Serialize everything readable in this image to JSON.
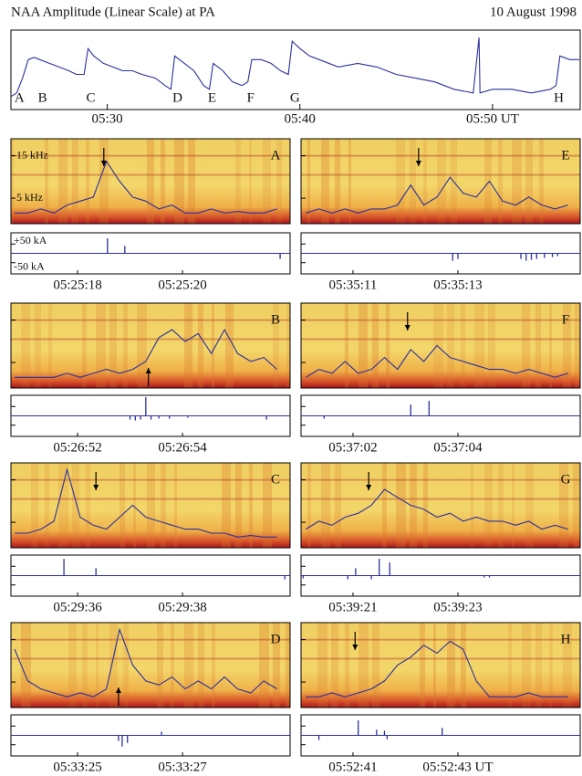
{
  "chart_data": [
    {
      "type": "line",
      "title": "NAA Amplitude (Linear Scale) at PA",
      "subtitle": "10 August 1998",
      "color": "#2b2f9e",
      "xlim": [
        25,
        54.55
      ],
      "ylim": [
        0,
        10
      ],
      "xticks": [
        {
          "value": 30,
          "label": "05:30"
        },
        {
          "value": 40,
          "label": "05:40"
        },
        {
          "value": 50,
          "label": "05:50 UT"
        }
      ],
      "x": [
        25,
        25.3,
        25.6,
        25.9,
        26.2,
        26.5,
        27,
        27.5,
        28,
        28.4,
        28.8,
        29.0,
        29.3,
        29.8,
        30.3,
        30.8,
        31.3,
        31.8,
        32.5,
        33.0,
        33.3,
        33.5,
        34,
        34.5,
        35,
        35.3,
        35.5,
        36,
        36.5,
        37,
        37.3,
        37.5,
        38,
        38.5,
        39,
        39.4,
        39.6,
        40,
        40.5,
        41,
        42,
        43,
        44,
        45,
        46,
        47,
        48,
        49,
        49.3,
        49.35,
        50,
        51,
        52,
        53,
        53.3,
        53.5,
        54,
        54.5
      ],
      "values": [
        1.5,
        2,
        4,
        6.5,
        6.8,
        6.5,
        6,
        5.5,
        5,
        4.5,
        4.5,
        8,
        7,
        6,
        5.5,
        5,
        5,
        4.5,
        4,
        3,
        2.5,
        7,
        6,
        5,
        3,
        2.5,
        6,
        5,
        3.5,
        3,
        3.5,
        6.5,
        6.5,
        6,
        5,
        4.5,
        9,
        8,
        7,
        6.5,
        5.5,
        6,
        5.5,
        4.5,
        4,
        3.5,
        2.5,
        2,
        9.5,
        2,
        2.5,
        2.5,
        2,
        2.5,
        3,
        7,
        6.5,
        6.5
      ],
      "annotations": [
        {
          "text": "A",
          "x": 25.3
        },
        {
          "text": "B",
          "x": 26.5
        },
        {
          "text": "C",
          "x": 29.0
        },
        {
          "text": "D",
          "x": 33.5
        },
        {
          "text": "E",
          "x": 35.3
        },
        {
          "text": "F",
          "x": 37.3
        },
        {
          "text": "G",
          "x": 39.6
        },
        {
          "text": "H",
          "x": 53.3
        }
      ]
    },
    {
      "type": "spectrogram-panels",
      "color": "#2b2f9e",
      "freq_lim": [
        -1,
        19
      ],
      "trace_lim": [
        0,
        1
      ],
      "stroke_lim": [
        -110,
        110
      ],
      "freq_ticks": [
        {
          "value": 15,
          "label": "15 kHz"
        },
        {
          "value": 5,
          "label": "5 kHz"
        }
      ],
      "stroke_ticks": [
        {
          "value": 50,
          "label": "+50 kA"
        },
        {
          "value": -50,
          "label": "-50 kA"
        }
      ],
      "panels": [
        {
          "label": "A",
          "xlim": [
            16.73,
            22.05
          ],
          "xticks": [
            {
              "value": 18,
              "label": "05:25:18"
            },
            {
              "value": 20,
              "label": "05:25:20"
            }
          ],
          "arrow_x": 18.5,
          "arrow": "down",
          "x": [
            16.8,
            17.05,
            17.3,
            17.55,
            17.8,
            18.05,
            18.3,
            18.55,
            18.8,
            19.05,
            19.3,
            19.55,
            19.8,
            20.05,
            20.3,
            20.55,
            20.8,
            21.05,
            21.3,
            21.55,
            21.8
          ],
          "trace": [
            0.1,
            0.1,
            0.15,
            0.1,
            0.2,
            0.25,
            0.3,
            0.75,
            0.5,
            0.3,
            0.25,
            0.15,
            0.2,
            0.1,
            0.1,
            0.15,
            0.1,
            0.12,
            0.1,
            0.1,
            0.15
          ],
          "stroke_x": [
            18.57,
            18.9,
            21.86
          ],
          "stroke_kA": [
            80,
            40,
            -30
          ]
        },
        {
          "label": "B",
          "xlim": [
            50.73,
            56.05
          ],
          "xticks": [
            {
              "value": 52,
              "label": "05:26:52"
            },
            {
              "value": 54,
              "label": "05:26:54"
            }
          ],
          "arrow_x": 53.35,
          "arrow": "up",
          "x": [
            50.8,
            51.05,
            51.3,
            51.55,
            51.8,
            52.05,
            52.3,
            52.55,
            52.8,
            53.05,
            53.3,
            53.55,
            53.8,
            54.05,
            54.3,
            54.55,
            54.8,
            55.05,
            55.3,
            55.55,
            55.8
          ],
          "trace": [
            0.1,
            0.1,
            0.1,
            0.1,
            0.15,
            0.1,
            0.15,
            0.2,
            0.15,
            0.2,
            0.3,
            0.6,
            0.7,
            0.55,
            0.65,
            0.4,
            0.7,
            0.4,
            0.3,
            0.35,
            0.2
          ],
          "stroke_x": [
            53.3,
            53.0,
            53.1,
            53.2,
            53.4,
            53.55,
            53.75,
            54.1,
            55.6
          ],
          "stroke_kA": [
            100,
            -20,
            -25,
            -20,
            -20,
            -15,
            -15,
            -10,
            -20
          ]
        },
        {
          "label": "C",
          "xlim": [
            34.73,
            40.05
          ],
          "xticks": [
            {
              "value": 36,
              "label": "05:29:36"
            },
            {
              "value": 38,
              "label": "05:29:38"
            }
          ],
          "arrow_x": 36.35,
          "arrow": "down",
          "x": [
            34.8,
            35.05,
            35.3,
            35.55,
            35.8,
            36.05,
            36.3,
            36.55,
            36.8,
            37.05,
            37.3,
            37.55,
            37.8,
            38.05,
            38.3,
            38.55,
            38.8,
            39.05,
            39.3,
            39.55,
            39.8
          ],
          "trace": [
            0.15,
            0.15,
            0.2,
            0.3,
            0.95,
            0.35,
            0.25,
            0.2,
            0.35,
            0.5,
            0.35,
            0.3,
            0.25,
            0.2,
            0.2,
            0.15,
            0.15,
            0.1,
            0.12,
            0.1,
            0.1
          ],
          "stroke_x": [
            35.74,
            36.35,
            39.95
          ],
          "stroke_kA": [
            90,
            40,
            -20
          ]
        },
        {
          "label": "D",
          "xlim": [
            23.73,
            29.05
          ],
          "xticks": [
            {
              "value": 25,
              "label": "05:33:25"
            },
            {
              "value": 27,
              "label": "05:33:27"
            }
          ],
          "arrow_x": 25.78,
          "arrow": "up",
          "x": [
            23.8,
            24.05,
            24.3,
            24.55,
            24.8,
            25.05,
            25.3,
            25.55,
            25.8,
            26.05,
            26.3,
            26.55,
            26.8,
            27.05,
            27.3,
            27.55,
            27.8,
            28.05,
            28.3,
            28.55,
            28.8
          ],
          "trace": [
            0.7,
            0.3,
            0.2,
            0.15,
            0.1,
            0.15,
            0.1,
            0.2,
            0.95,
            0.5,
            0.3,
            0.25,
            0.35,
            0.2,
            0.3,
            0.2,
            0.35,
            0.2,
            0.15,
            0.3,
            0.2
          ],
          "stroke_x": [
            25.78,
            25.85,
            25.95,
            26.6
          ],
          "stroke_kA": [
            -30,
            -60,
            -40,
            20
          ]
        },
        {
          "label": "E",
          "xlim": [
            10.01,
            15.33
          ],
          "xticks": [
            {
              "value": 11,
              "label": "05:35:11"
            },
            {
              "value": 13,
              "label": "05:35:13"
            }
          ],
          "arrow_x": 12.25,
          "arrow": "down",
          "x": [
            10.1,
            10.35,
            10.6,
            10.85,
            11.1,
            11.35,
            11.6,
            11.85,
            12.1,
            12.35,
            12.6,
            12.85,
            13.1,
            13.35,
            13.6,
            13.85,
            14.1,
            14.35,
            14.6,
            14.85,
            15.1
          ],
          "trace": [
            0.1,
            0.15,
            0.1,
            0.15,
            0.1,
            0.15,
            0.15,
            0.2,
            0.45,
            0.2,
            0.3,
            0.55,
            0.35,
            0.3,
            0.5,
            0.25,
            0.2,
            0.3,
            0.2,
            0.15,
            0.2
          ],
          "stroke_x": [
            12.9,
            13.0,
            14.2,
            14.3,
            14.4,
            14.5,
            14.65,
            14.8,
            14.9
          ],
          "stroke_kA": [
            -40,
            -30,
            -30,
            -40,
            -35,
            -30,
            -25,
            -20,
            -15
          ]
        },
        {
          "label": "F",
          "xlim": [
            1.01,
            6.33
          ],
          "xticks": [
            {
              "value": 2,
              "label": "05:37:02"
            },
            {
              "value": 4,
              "label": "05:37:04"
            }
          ],
          "arrow_x": 3.04,
          "arrow": "down",
          "x": [
            1.1,
            1.35,
            1.6,
            1.85,
            2.1,
            2.35,
            2.6,
            2.85,
            3.1,
            3.35,
            3.6,
            3.85,
            4.1,
            4.35,
            4.6,
            4.85,
            5.1,
            5.35,
            5.6,
            5.85,
            6.1
          ],
          "trace": [
            0.1,
            0.2,
            0.15,
            0.3,
            0.15,
            0.2,
            0.35,
            0.2,
            0.45,
            0.3,
            0.5,
            0.35,
            0.3,
            0.25,
            0.2,
            0.2,
            0.15,
            0.2,
            0.15,
            0.1,
            0.15
          ],
          "stroke_x": [
            1.45,
            3.1,
            3.45
          ],
          "stroke_kA": [
            -15,
            60,
            80
          ]
        },
        {
          "label": "G",
          "xlim": [
            20.01,
            25.33
          ],
          "xticks": [
            {
              "value": 21,
              "label": "05:39:21"
            },
            {
              "value": 23,
              "label": "05:39:23"
            }
          ],
          "arrow_x": 21.3,
          "arrow": "down",
          "x": [
            20.1,
            20.35,
            20.6,
            20.85,
            21.1,
            21.35,
            21.6,
            21.85,
            22.1,
            22.35,
            22.6,
            22.85,
            23.1,
            23.35,
            23.6,
            23.85,
            24.1,
            24.35,
            24.6,
            24.85,
            25.1
          ],
          "trace": [
            0.2,
            0.3,
            0.25,
            0.35,
            0.4,
            0.5,
            0.7,
            0.6,
            0.5,
            0.45,
            0.35,
            0.4,
            0.3,
            0.35,
            0.3,
            0.3,
            0.25,
            0.3,
            0.2,
            0.25,
            0.2
          ],
          "stroke_x": [
            20.05,
            20.9,
            21.05,
            21.35,
            21.5,
            21.7,
            23.5,
            23.6
          ],
          "stroke_kA": [
            -15,
            -20,
            40,
            -20,
            90,
            70,
            -10,
            -10
          ]
        },
        {
          "label": "H",
          "xlim": [
            40.01,
            45.33
          ],
          "xticks": [
            {
              "value": 41,
              "label": "05:52:41"
            },
            {
              "value": 43,
              "label": "05:52:43 UT"
            }
          ],
          "arrow_x": 41.04,
          "arrow": "down",
          "x": [
            40.1,
            40.35,
            40.6,
            40.85,
            41.1,
            41.35,
            41.6,
            41.85,
            42.1,
            42.35,
            42.6,
            42.85,
            43.1,
            43.35,
            43.6,
            43.85,
            44.1,
            44.35,
            44.6,
            44.85,
            45.1
          ],
          "trace": [
            0.1,
            0.1,
            0.15,
            0.1,
            0.15,
            0.2,
            0.3,
            0.5,
            0.6,
            0.75,
            0.65,
            0.8,
            0.7,
            0.3,
            0.1,
            0.1,
            0.1,
            0.15,
            0.1,
            0.1,
            0.1
          ],
          "stroke_x": [
            40.35,
            41.1,
            41.45,
            41.6,
            41.65,
            42.7
          ],
          "stroke_kA": [
            -25,
            80,
            30,
            25,
            -20,
            40
          ]
        }
      ]
    }
  ]
}
